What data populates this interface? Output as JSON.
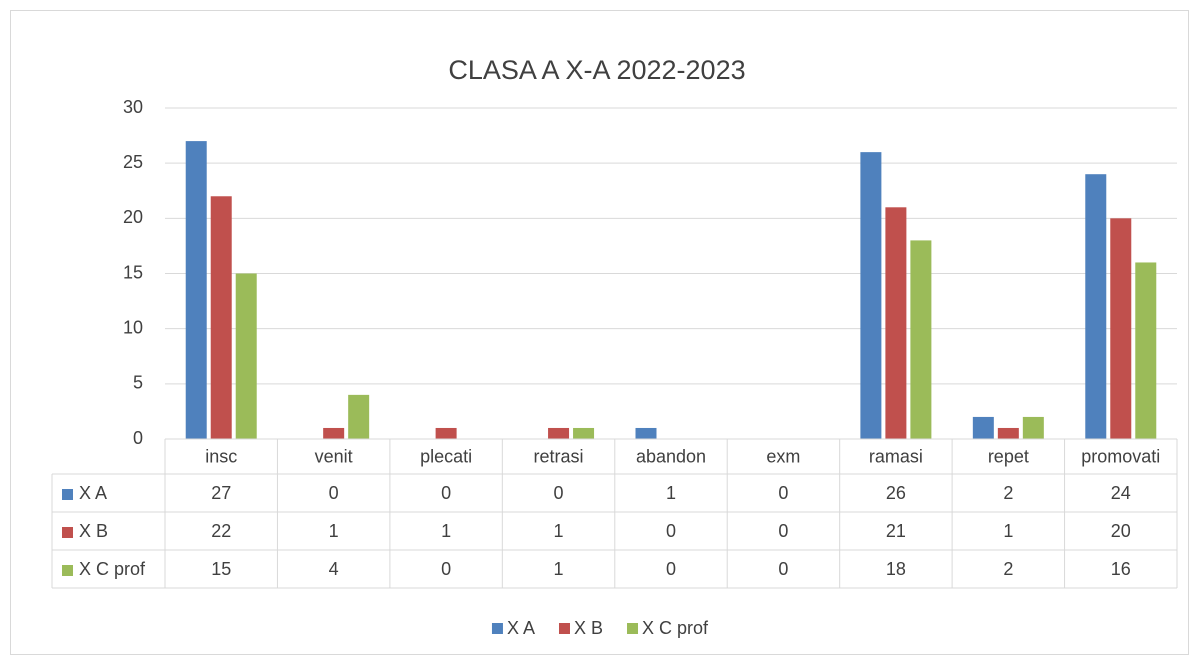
{
  "chart_data": {
    "type": "bar",
    "title": "CLASA A X-A 2022-2023",
    "categories": [
      "insc",
      "venit",
      "plecati",
      "retrasi",
      "abandon",
      "exm",
      "ramasi",
      "repet",
      "promovati"
    ],
    "series": [
      {
        "name": "X A",
        "color": "#4f81bd",
        "values": [
          27,
          0,
          0,
          0,
          1,
          0,
          26,
          2,
          24
        ]
      },
      {
        "name": "X B",
        "color": "#c0504d",
        "values": [
          22,
          1,
          1,
          1,
          0,
          0,
          21,
          1,
          20
        ]
      },
      {
        "name": "X C prof",
        "color": "#9bbb59",
        "values": [
          15,
          4,
          0,
          1,
          0,
          0,
          18,
          2,
          16
        ]
      }
    ],
    "ylim": [
      0,
      30
    ],
    "yticks": [
      0,
      5,
      10,
      15,
      20,
      25,
      30
    ],
    "grid": true,
    "legend": "bottom",
    "data_table": true
  }
}
